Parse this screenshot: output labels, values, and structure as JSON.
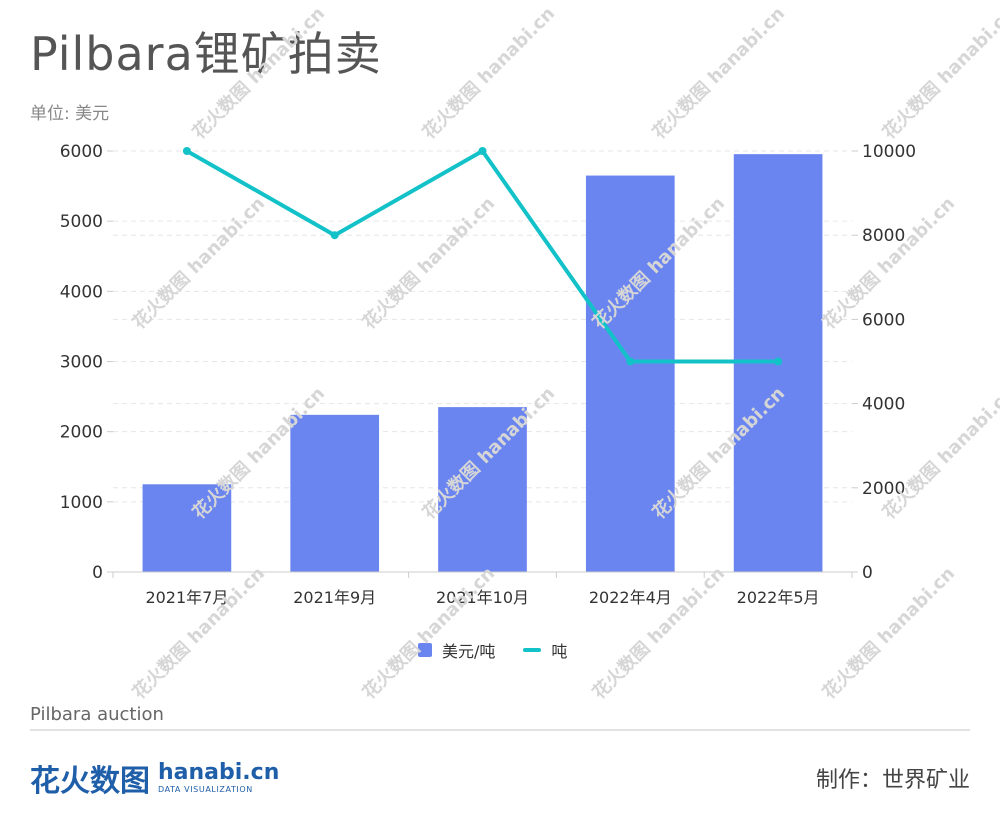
{
  "title": "Pilbara锂矿拍卖",
  "unit_label": "单位: 美元",
  "subtitle": "Pilbara auction",
  "credit": "制作：世界矿业",
  "brand": {
    "cn": "花火数图",
    "en": "hanabi.cn",
    "en_sub": "DATA VISUALIZATION"
  },
  "watermark": "花火数图 hanabi.cn",
  "colors": {
    "bar": "#6a85f0",
    "line": "#13c2c8",
    "grid": "#e6e6e6",
    "axis": "#cccccc"
  },
  "chart_data": {
    "type": "bar",
    "categories": [
      "2021年7月",
      "2021年9月",
      "2021年10月",
      "2022年4月",
      "2022年5月"
    ],
    "series": [
      {
        "name": "美元/吨",
        "type": "bar",
        "axis": "left",
        "values": [
          1250,
          2240,
          2350,
          5650,
          5955
        ]
      },
      {
        "name": "吨",
        "type": "line",
        "axis": "right",
        "values": [
          10000,
          8000,
          10000,
          5000,
          5000
        ]
      }
    ],
    "y_left": {
      "ylim": [
        0,
        6000
      ],
      "ticks": [
        "0",
        "1000",
        "2000",
        "3000",
        "4000",
        "5000",
        "6000"
      ]
    },
    "y_right": {
      "ylim": [
        0,
        10000
      ],
      "ticks": [
        "0",
        "2000",
        "4000",
        "6000",
        "8000",
        "10000"
      ]
    },
    "grid": true,
    "legend_position": "bottom"
  }
}
